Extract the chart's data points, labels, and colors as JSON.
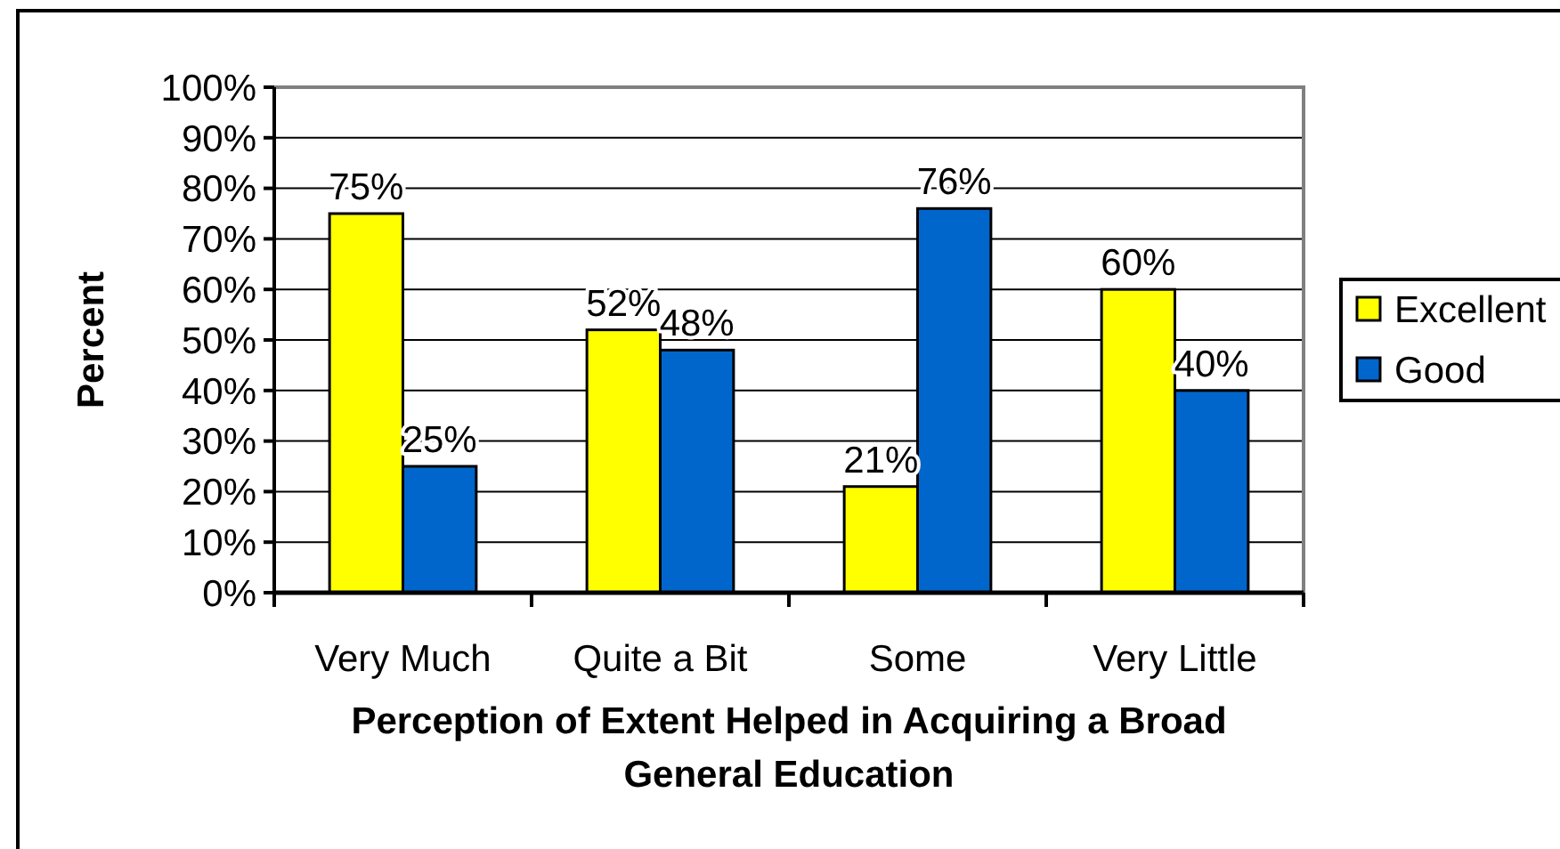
{
  "chart_data": {
    "type": "bar",
    "xlabel": "Perception of Extent Helped in Acquiring a Broad General Education",
    "ylabel": "Percent",
    "categories": [
      "Very Much",
      "Quite a Bit",
      "Some",
      "Very Little"
    ],
    "series": [
      {
        "name": "Excellent",
        "color": "#ffff00",
        "values": [
          75,
          52,
          21,
          60
        ],
        "value_labels": [
          "75%",
          "52%",
          "21%",
          "60%"
        ]
      },
      {
        "name": "Good",
        "color": "#0066cc",
        "values": [
          25,
          48,
          76,
          40
        ],
        "value_labels": [
          "25%",
          "48%",
          "76%",
          "40%"
        ]
      }
    ],
    "ylim": [
      0,
      100
    ],
    "yticks": [
      {
        "value": 0,
        "label": "0%"
      },
      {
        "value": 10,
        "label": "10%"
      },
      {
        "value": 20,
        "label": "20%"
      },
      {
        "value": 30,
        "label": "30%"
      },
      {
        "value": 40,
        "label": "40%"
      },
      {
        "value": 50,
        "label": "50%"
      },
      {
        "value": 60,
        "label": "60%"
      },
      {
        "value": 70,
        "label": "70%"
      },
      {
        "value": 80,
        "label": "80%"
      },
      {
        "value": 90,
        "label": "90%"
      },
      {
        "value": 100,
        "label": "100%"
      }
    ],
    "grid": "y",
    "legend": "right"
  }
}
